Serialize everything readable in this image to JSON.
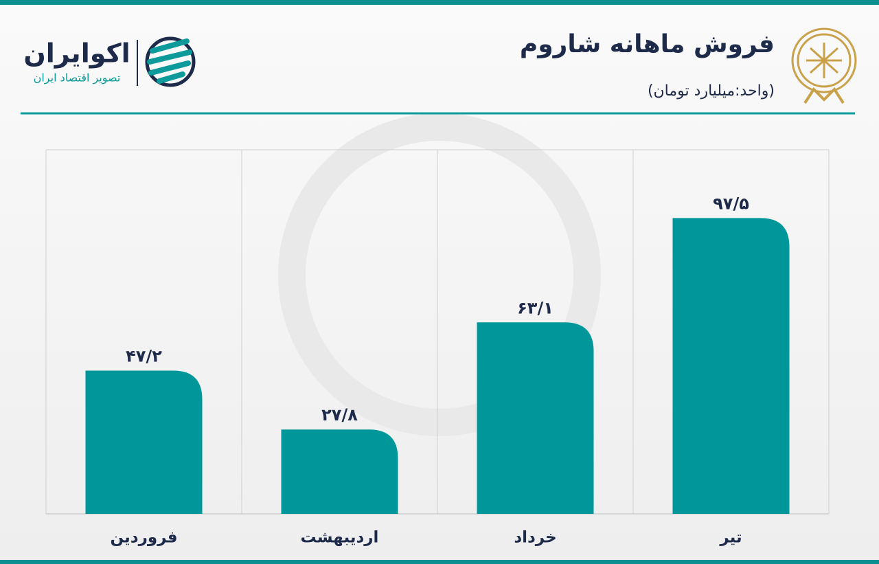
{
  "chart_data": {
    "type": "bar",
    "title": "فروش ماهانه شاروم",
    "subtitle": "(واحد:میلیارد تومان)",
    "categories": [
      "فروردین",
      "اردیبهشت",
      "خرداد",
      "تیر"
    ],
    "values": [
      47.2,
      27.8,
      63.1,
      97.5
    ],
    "value_labels": [
      "۴۷/۲",
      "۲۷/۸",
      "۶۳/۱",
      "۹۷/۵"
    ],
    "color": "#01979a",
    "ylim": [
      0,
      120
    ]
  },
  "logo": {
    "name": "اکوایران",
    "tagline": "تصویر اقتصاد ایران"
  }
}
